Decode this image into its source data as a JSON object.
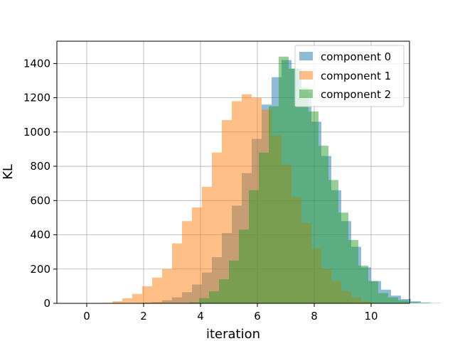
{
  "chart_data": {
    "type": "histogram",
    "xlabel": "iteration",
    "ylabel": "KL",
    "xlim": [
      -1.05,
      11.35
    ],
    "ylim": [
      0,
      1530
    ],
    "xticks": [
      0,
      2,
      4,
      6,
      8,
      10
    ],
    "yticks": [
      0,
      200,
      400,
      600,
      800,
      1000,
      1200,
      1400
    ],
    "grid": true,
    "legend_position": "upper right",
    "alpha": 0.5,
    "series": [
      {
        "name": "component 0",
        "color": "#1f77b4",
        "bin_start": 1.6,
        "bin_width": 0.35,
        "counts": [
          1,
          4,
          7,
          18,
          35,
          65,
          110,
          180,
          270,
          410,
          570,
          760,
          960,
          1160,
          1320,
          1420,
          1370,
          1230,
          1060,
          860,
          660,
          480,
          330,
          210,
          130,
          80,
          45,
          25,
          12,
          5,
          2
        ]
      },
      {
        "name": "component 1",
        "color": "#ff7f0e",
        "bin_start": 0.55,
        "bin_width": 0.35,
        "counts": [
          3,
          12,
          30,
          55,
          100,
          150,
          200,
          350,
          480,
          560,
          680,
          880,
          1070,
          1180,
          1220,
          1200,
          1130,
          980,
          810,
          620,
          470,
          320,
          200,
          130,
          70,
          35,
          12,
          3,
          1
        ]
      },
      {
        "name": "component 2",
        "color": "#2ca02c",
        "bin_start": 3.25,
        "bin_width": 0.35,
        "counts": [
          1,
          6,
          30,
          70,
          140,
          250,
          430,
          660,
          880,
          1150,
          1440,
          1370,
          1260,
          1120,
          920,
          720,
          530,
          370,
          220,
          130,
          60,
          35,
          18,
          6,
          2
        ]
      }
    ]
  }
}
